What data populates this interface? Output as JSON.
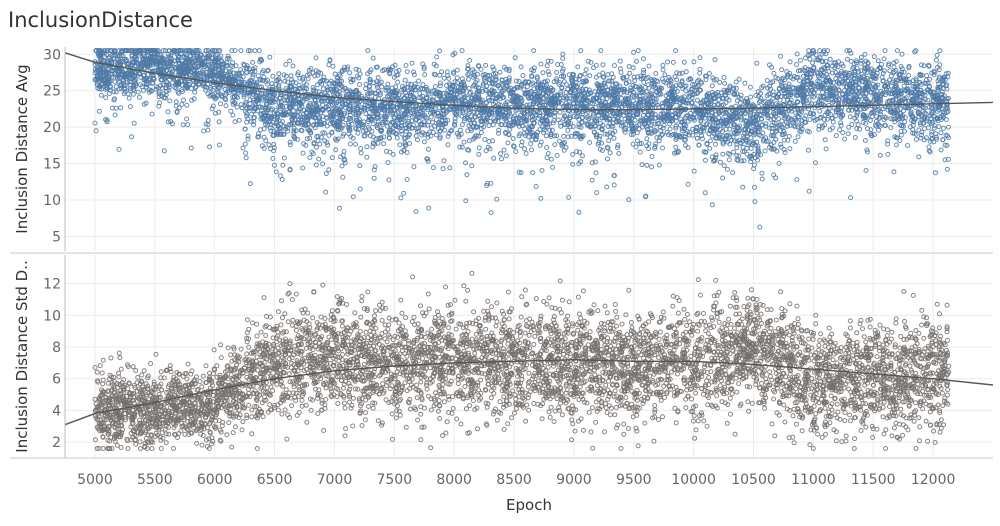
{
  "title": "InclusionDistance",
  "chart_data": [
    {
      "type": "scatter",
      "ylabel": "Inclusion Distance Avg",
      "xlabel": "Epoch",
      "xlim": [
        4750,
        12500
      ],
      "ylim": [
        3,
        31
      ],
      "yticks": [
        5,
        10,
        15,
        20,
        25,
        30
      ],
      "color": "#4e79a7",
      "point_count_approx": 6000,
      "trend_line": {
        "x": [
          4750,
          5000,
          5500,
          6000,
          6500,
          7000,
          7500,
          8000,
          8500,
          9000,
          9500,
          10000,
          10500,
          11000,
          11500,
          12000,
          12500
        ],
        "y": [
          30.2,
          28.9,
          27.4,
          26.1,
          25.0,
          24.1,
          23.5,
          23.0,
          22.6,
          22.4,
          22.4,
          22.5,
          22.6,
          22.8,
          23.0,
          23.2,
          23.4
        ]
      },
      "scatter_summary": {
        "x": [
          5000,
          5500,
          6000,
          6500,
          7000,
          7500,
          8000,
          8500,
          9000,
          9500,
          10000,
          10500,
          11000,
          11500,
          12000
        ],
        "y_mean": [
          28.0,
          28.0,
          27.8,
          23.0,
          22.5,
          22.8,
          23.0,
          23.0,
          23.2,
          23.0,
          22.5,
          20.0,
          25.5,
          24.5,
          23.5
        ]
      }
    },
    {
      "type": "scatter",
      "ylabel": "Inclusion Distance Std D..",
      "xlabel": "Epoch",
      "xlim": [
        4750,
        12500
      ],
      "ylim": [
        1,
        13.8
      ],
      "yticks": [
        2,
        4,
        6,
        8,
        10,
        12
      ],
      "color": "#76706c",
      "point_count_approx": 6000,
      "trend_line": {
        "x": [
          4750,
          5000,
          5500,
          6000,
          6500,
          7000,
          7500,
          8000,
          8500,
          9000,
          9500,
          10000,
          10500,
          11000,
          11500,
          12000,
          12500
        ],
        "y": [
          3.1,
          3.8,
          4.5,
          5.3,
          6.0,
          6.5,
          6.8,
          7.0,
          7.1,
          7.2,
          7.1,
          7.1,
          6.9,
          6.6,
          6.3,
          6.0,
          5.6
        ]
      },
      "scatter_summary": {
        "x": [
          5000,
          5500,
          6000,
          6500,
          7000,
          7500,
          8000,
          8500,
          9000,
          9500,
          10000,
          10500,
          11000,
          11500,
          12000
        ],
        "y_mean": [
          4.2,
          4.2,
          4.5,
          7.0,
          7.3,
          7.0,
          7.2,
          7.0,
          6.8,
          6.8,
          7.0,
          8.0,
          6.0,
          6.0,
          6.3
        ]
      }
    }
  ],
  "x_axis": {
    "label": "Epoch",
    "ticks": [
      5000,
      5500,
      6000,
      6500,
      7000,
      7500,
      8000,
      8500,
      9000,
      9500,
      10000,
      10500,
      11000,
      11500,
      12000
    ]
  },
  "colors": {
    "avg": "#4e79a7",
    "std": "#76706c",
    "trend": "#555555",
    "grid": "#ececec"
  }
}
